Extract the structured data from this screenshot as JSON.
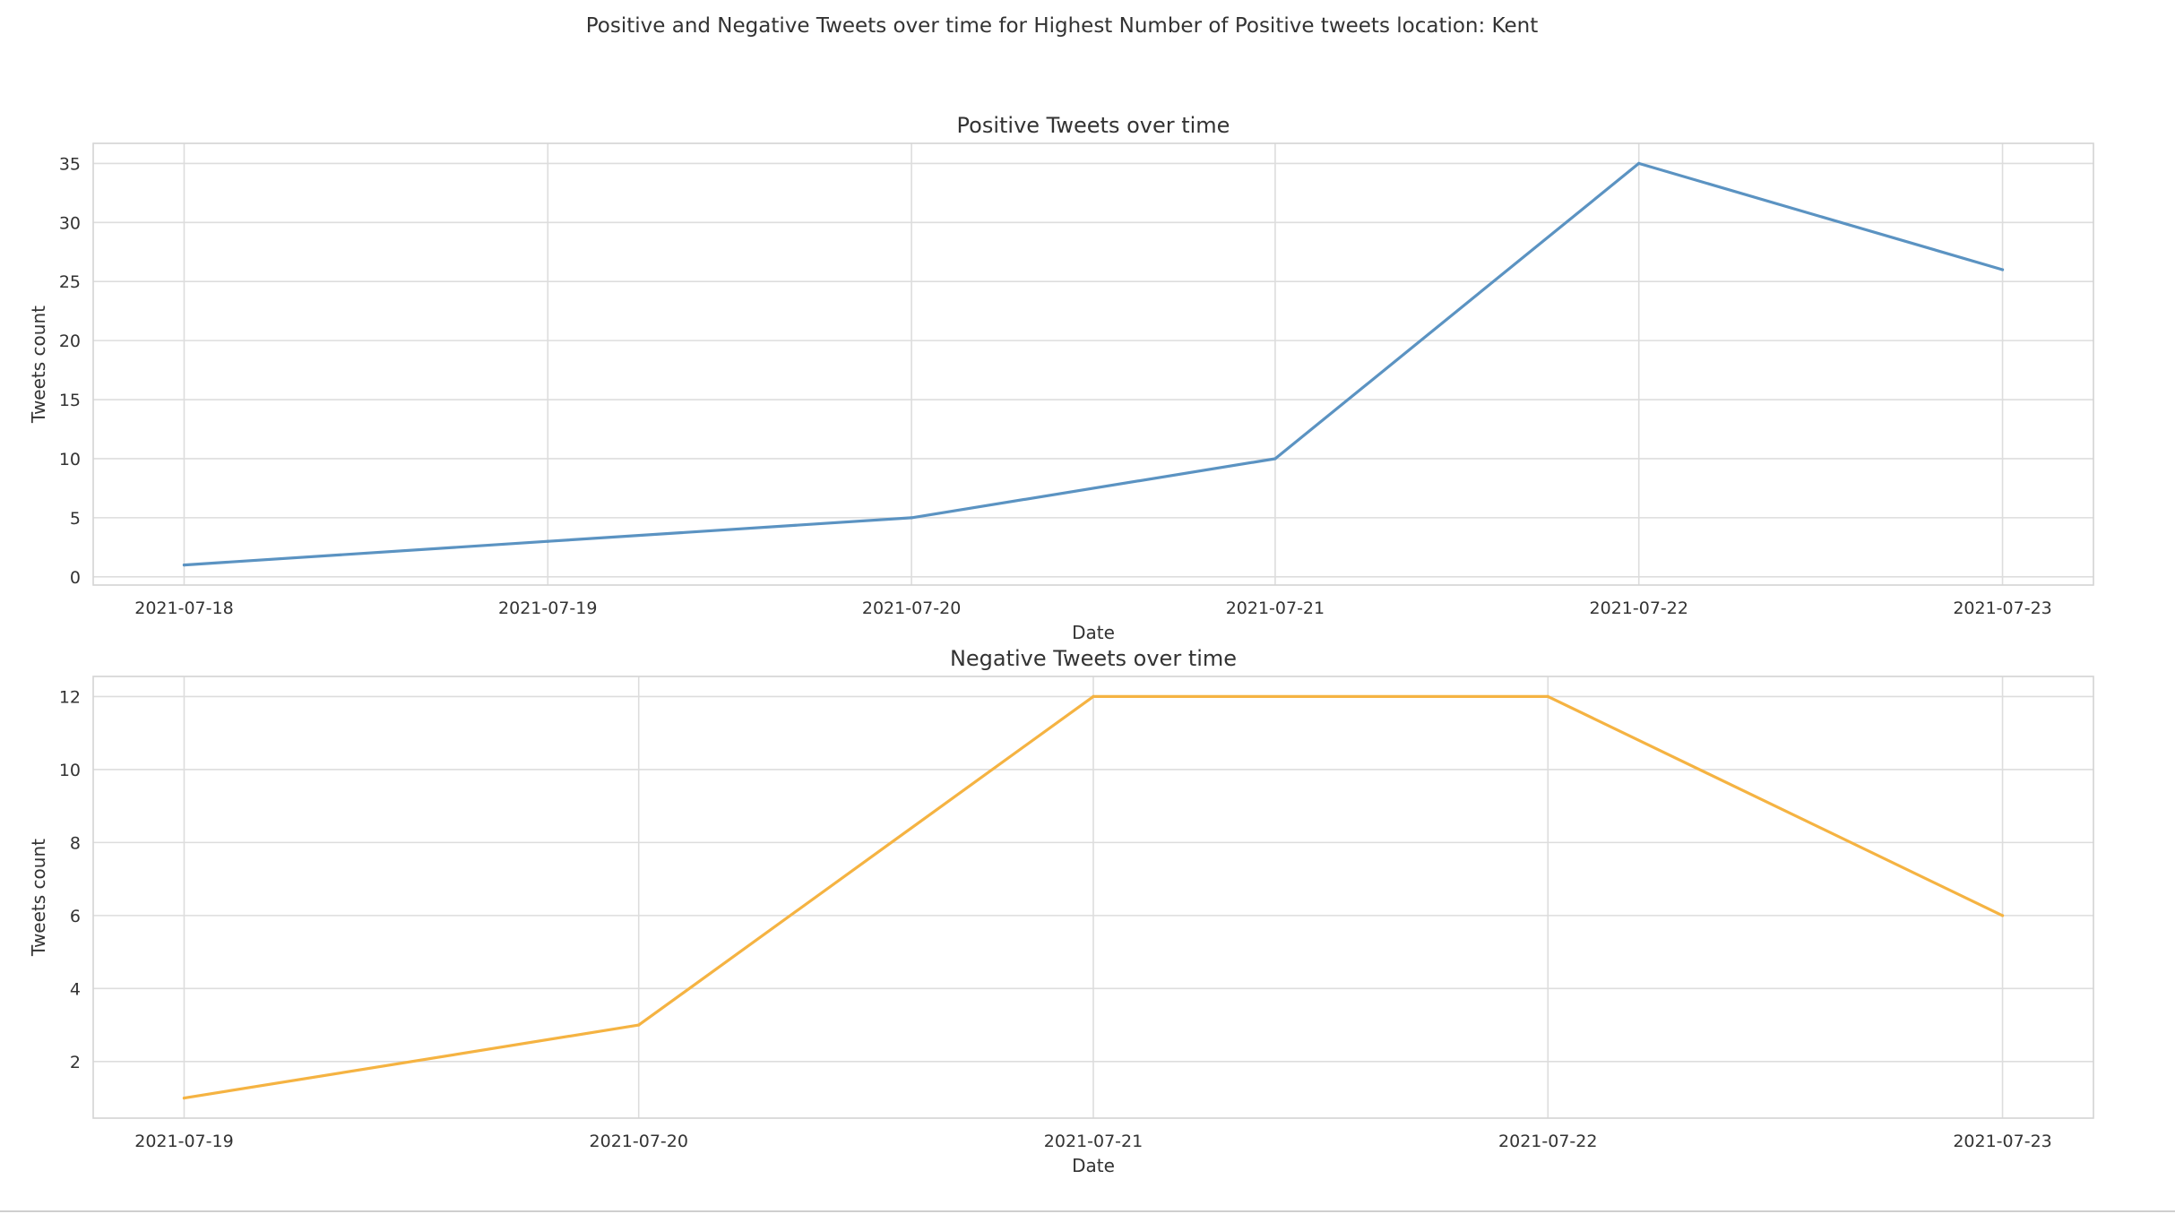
{
  "suptitle": "Positive and Negative Tweets over time for Highest Number of Positive tweets location: Kent",
  "chart_data": [
    {
      "type": "line",
      "title": "Positive Tweets over time",
      "xlabel": "Date",
      "ylabel": "Tweets count",
      "x": [
        "2021-07-18",
        "2021-07-19",
        "2021-07-20",
        "2021-07-21",
        "2021-07-22",
        "2021-07-23"
      ],
      "series": [
        {
          "values": [
            1,
            3,
            5,
            10,
            35,
            26
          ],
          "color": "#5b93c2"
        }
      ],
      "xlim": [
        "2021-07-17.75",
        "2021-07-23.25"
      ],
      "ylim": [
        -0.7,
        36.7
      ],
      "yticks": [
        0,
        5,
        10,
        15,
        20,
        25,
        30,
        35
      ],
      "xticks": [
        "2021-07-18",
        "2021-07-19",
        "2021-07-20",
        "2021-07-21",
        "2021-07-22",
        "2021-07-23"
      ],
      "grid": true
    },
    {
      "type": "line",
      "title": "Negative Tweets over time",
      "xlabel": "Date",
      "ylabel": "Tweets count",
      "x": [
        "2021-07-19",
        "2021-07-20",
        "2021-07-21",
        "2021-07-22",
        "2021-07-23"
      ],
      "series": [
        {
          "values": [
            1,
            3,
            12,
            12,
            6
          ],
          "color": "#f5b342"
        }
      ],
      "xlim": [
        "2021-07-18.8",
        "2021-07-23.2"
      ],
      "ylim": [
        0.45,
        12.55
      ],
      "yticks": [
        2,
        4,
        6,
        8,
        10,
        12
      ],
      "xticks": [
        "2021-07-19",
        "2021-07-20",
        "2021-07-21",
        "2021-07-22",
        "2021-07-23"
      ],
      "grid": true
    }
  ]
}
